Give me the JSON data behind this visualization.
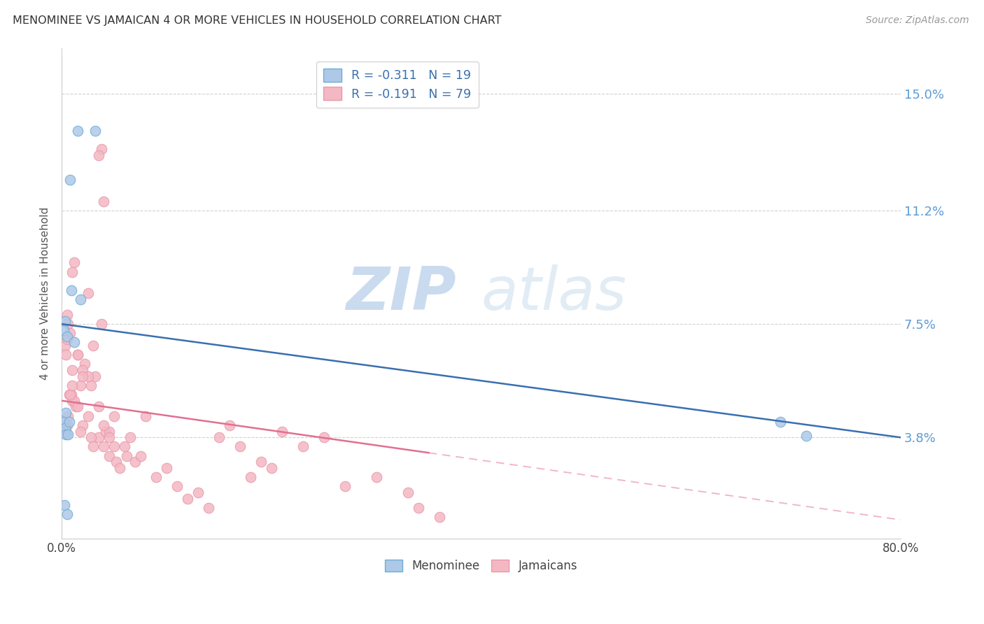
{
  "title": "MENOMINEE VS JAMAICAN 4 OR MORE VEHICLES IN HOUSEHOLD CORRELATION CHART",
  "source": "Source: ZipAtlas.com",
  "ylabel": "4 or more Vehicles in Household",
  "ytick_labels": [
    "3.8%",
    "7.5%",
    "11.2%",
    "15.0%"
  ],
  "ytick_values": [
    3.8,
    7.5,
    11.2,
    15.0
  ],
  "xlim": [
    0.0,
    80.0
  ],
  "ylim": [
    0.5,
    16.5
  ],
  "ylim_bottom": 0.5,
  "ylim_top": 16.5,
  "menominee_x": [
    1.5,
    3.2,
    0.8,
    0.3,
    0.2,
    0.5,
    0.9,
    1.8,
    0.4,
    0.2,
    0.3,
    1.2,
    0.7,
    0.4,
    0.6,
    68.5,
    71.0,
    0.25,
    0.55
  ],
  "menominee_y": [
    13.8,
    13.8,
    12.2,
    7.6,
    7.3,
    7.1,
    8.6,
    8.3,
    4.6,
    4.3,
    4.1,
    6.9,
    4.3,
    3.9,
    3.9,
    4.3,
    3.85,
    1.6,
    1.3
  ],
  "jamaican_x": [
    3.8,
    3.5,
    1.2,
    1.0,
    0.5,
    0.6,
    0.8,
    2.5,
    0.3,
    0.4,
    2.2,
    1.5,
    3.0,
    2.0,
    2.8,
    0.7,
    1.0,
    1.3,
    1.8,
    0.9,
    2.5,
    3.2,
    4.0,
    3.8,
    0.3,
    0.4,
    0.5,
    0.6,
    1.2,
    1.5,
    0.8,
    1.0,
    2.0,
    1.8,
    3.5,
    4.0,
    2.8,
    3.0,
    4.5,
    4.2,
    5.0,
    5.2,
    6.0,
    6.2,
    6.5,
    7.0,
    4.5,
    5.5,
    7.5,
    8.0,
    9.0,
    10.0,
    11.0,
    12.0,
    13.0,
    14.0,
    15.0,
    16.0,
    17.0,
    18.0,
    19.0,
    20.0,
    21.0,
    23.0,
    25.0,
    27.0,
    30.0,
    33.0,
    34.0,
    36.0,
    1.0,
    2.5,
    0.5,
    1.5,
    2.0,
    3.5,
    4.0,
    4.5,
    5.0
  ],
  "jamaican_y": [
    13.2,
    13.0,
    9.5,
    9.2,
    7.8,
    7.5,
    7.2,
    8.5,
    6.8,
    6.5,
    6.2,
    6.5,
    6.8,
    6.0,
    5.5,
    5.2,
    5.0,
    4.8,
    5.5,
    5.2,
    4.5,
    5.8,
    11.5,
    7.5,
    4.2,
    4.0,
    4.2,
    4.5,
    5.0,
    4.8,
    5.2,
    5.5,
    4.2,
    4.0,
    3.8,
    3.5,
    3.8,
    3.5,
    3.2,
    4.0,
    4.5,
    3.0,
    3.5,
    3.2,
    3.8,
    3.0,
    4.0,
    2.8,
    3.2,
    4.5,
    2.5,
    2.8,
    2.2,
    1.8,
    2.0,
    1.5,
    3.8,
    4.2,
    3.5,
    2.5,
    3.0,
    2.8,
    4.0,
    3.5,
    3.8,
    2.2,
    2.5,
    2.0,
    1.5,
    1.2,
    6.0,
    5.8,
    7.0,
    6.5,
    5.8,
    4.8,
    4.2,
    3.8,
    3.5
  ],
  "menominee_color": "#aec8e8",
  "jamaican_color": "#f4b8c4",
  "menominee_edge": "#6baed6",
  "jamaican_edge": "#e899aa",
  "blue_line_color": "#3a6fb0",
  "pink_line_color": "#e07090",
  "blue_line_start_y": 7.5,
  "blue_line_end_y": 3.8,
  "pink_line_start_y": 5.0,
  "pink_line_end_y": 3.3,
  "pink_solid_end_x": 35.0,
  "watermark_zip": "ZIP",
  "watermark_atlas": "atlas",
  "background_color": "#ffffff",
  "grid_color": "#cccccc",
  "legend_blue_label": "R = -0.311   N = 19",
  "legend_pink_label": "R = -0.191   N = 79",
  "bottom_legend_men": "Menominee",
  "bottom_legend_jam": "Jamaicans"
}
